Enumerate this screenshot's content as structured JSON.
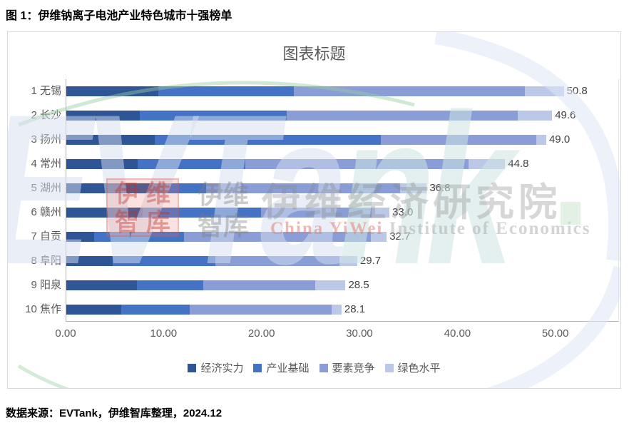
{
  "page": {
    "title": "图 1：伊维钠离子电池产业特色城市十强榜单",
    "source": "数据来源：EVTank，伊维智库整理，2024.12"
  },
  "chart": {
    "title": "图表标题"
  },
  "watermark": {
    "brand_left": "EVTa",
    "brand_right": "nk",
    "logo_text": "伊维智库",
    "cn_small": "伊维智库",
    "cn_large": "伊维经济研究院",
    "en_highlight": "China YiWei",
    "en_rest": " Institute of Economics"
  },
  "chart_data": {
    "type": "bar",
    "orientation": "horizontal",
    "stacked": true,
    "title": "图表标题",
    "categories": [
      "1 无锡",
      "2 长沙",
      "3 扬州",
      "4 常州",
      "5 湖州",
      "6 赣州",
      "7 自贡",
      "8 阜阳",
      "9 阳泉",
      "10 焦作"
    ],
    "totals": [
      50.8,
      49.6,
      49.0,
      44.8,
      36.8,
      33.0,
      32.7,
      29.7,
      28.5,
      28.1
    ],
    "series": [
      {
        "name": "经济实力",
        "color": "#2E5596",
        "values": [
          9.4,
          7.5,
          9.0,
          7.3,
          10.0,
          7.8,
          2.8,
          4.7,
          7.2,
          5.6
        ]
      },
      {
        "name": "产业基础",
        "color": "#4472C4",
        "values": [
          13.8,
          15.0,
          23.1,
          11.0,
          4.3,
          12.1,
          9.2,
          10.5,
          6.8,
          7.0
        ]
      },
      {
        "name": "要素竞争",
        "color": "#8A9DD7",
        "values": [
          23.6,
          23.6,
          15.9,
          22.8,
          19.8,
          11.3,
          19.1,
          12.7,
          11.4,
          14.5
        ]
      },
      {
        "name": "绿色水平",
        "color": "#BCC8E8",
        "values": [
          4.0,
          3.5,
          1.0,
          3.7,
          2.7,
          1.8,
          1.6,
          1.8,
          3.1,
          1.0
        ]
      }
    ],
    "x_ticks": [
      "0.00",
      "10.00",
      "20.00",
      "30.00",
      "40.00",
      "50.00"
    ],
    "x_tick_values": [
      0,
      10,
      20,
      30,
      40,
      50
    ],
    "xlim": [
      0,
      56.5
    ],
    "grid": false,
    "legend_position": "bottom",
    "value_labels": "total at bar end, 1 decimal"
  }
}
